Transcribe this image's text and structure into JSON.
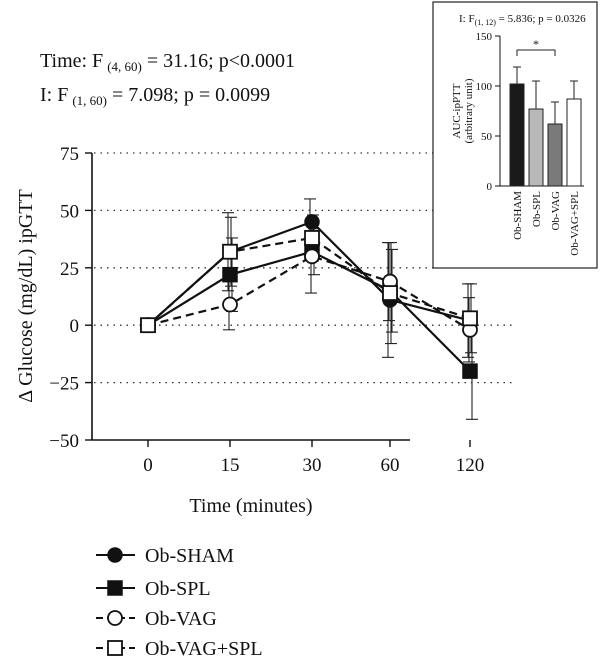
{
  "stats": {
    "line1_prefix": "Time: F",
    "line1_sub": "(4, 60)",
    "line1_suffix": " = 31.16; p<0.0001",
    "line2_prefix": "I: F",
    "line2_sub": "(1, 60)",
    "line2_suffix": " = 7.098; p = 0.0099"
  },
  "chart_data": [
    {
      "type": "line",
      "title": "",
      "xlabel": "Time (minutes)",
      "ylabel": "Δ Glucose (mg/dL) ipGTT",
      "x": [
        "0",
        "15",
        "30",
        "60",
        "120"
      ],
      "ylim": [
        -50,
        75
      ],
      "yticks": [
        75,
        50,
        25,
        0,
        -25,
        -50
      ],
      "grid": "dotted horizontal",
      "legend_position": "bottom-left",
      "series": [
        {
          "name": "Ob-SHAM",
          "marker": "filled-circle",
          "line": "solid",
          "values": [
            0,
            32,
            45,
            11,
            2
          ],
          "err": [
            0,
            17,
            10,
            25,
            16
          ]
        },
        {
          "name": "Ob-SPL",
          "marker": "filled-square",
          "line": "solid",
          "values": [
            0,
            22,
            32,
            15,
            -20
          ],
          "err": [
            0,
            16,
            10,
            18,
            21
          ]
        },
        {
          "name": "Ob-VAG",
          "marker": "open-circle",
          "line": "dashed",
          "values": [
            0,
            9,
            30,
            19,
            -2
          ],
          "err": [
            0,
            11,
            16,
            17,
            14
          ]
        },
        {
          "name": "Ob-VAG+SPL",
          "marker": "open-square",
          "line": "dashed",
          "values": [
            0,
            32,
            38,
            14,
            3
          ],
          "err": [
            0,
            15,
            10,
            22,
            15
          ]
        }
      ]
    },
    {
      "type": "bar",
      "title": "I: F(1, 12) = 5.836; p = 0.0326",
      "title_prefix": "I: F",
      "title_sub": "(1, 12)",
      "title_suffix": " = 5.836; p = 0.0326",
      "ylabel": "AUC-ipPTT",
      "ylabel2": "(arbitrary unit)",
      "categories": [
        "Ob-SHAM",
        "Ob-SPL",
        "Ob-VAG",
        "Ob-VAG+SPL"
      ],
      "values": [
        102,
        77,
        62,
        87
      ],
      "err": [
        17,
        28,
        22,
        18
      ],
      "colors": [
        "#1a1a1a",
        "#b8b8b8",
        "#7a7a7a",
        "#ffffff"
      ],
      "ylim": [
        0,
        150
      ],
      "yticks": [
        0,
        50,
        100,
        150
      ],
      "significance": {
        "from": "Ob-SHAM",
        "to": "Ob-VAG",
        "label": "*"
      }
    }
  ]
}
